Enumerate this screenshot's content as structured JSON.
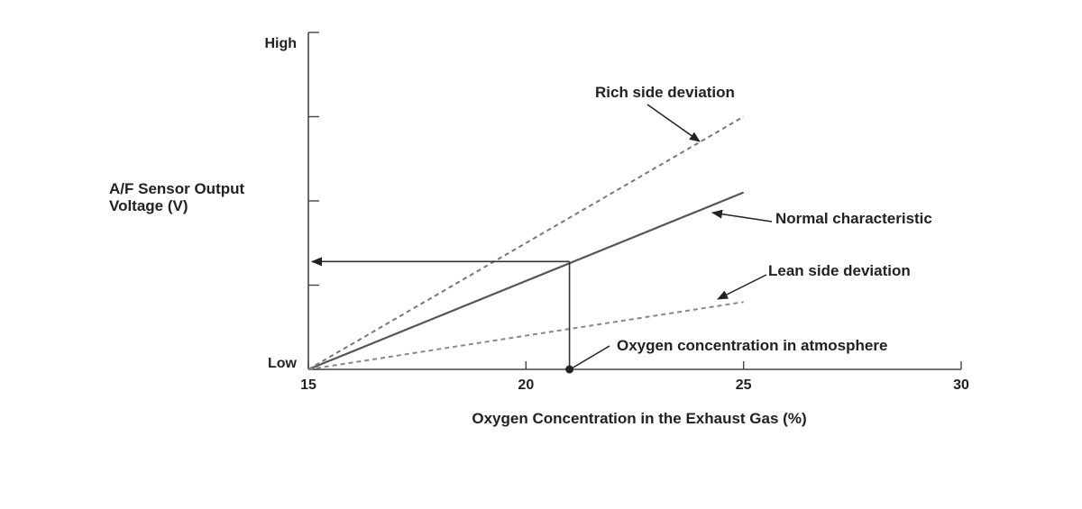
{
  "chart_data": {
    "type": "line",
    "xlabel": "Oxygen Concentration in the Exhaust Gas (%)",
    "ylabel_lines": [
      "A/F Sensor Output",
      "Voltage (V)"
    ],
    "y_tick_labels": {
      "high": "High",
      "low": "Low"
    },
    "xlim": [
      15,
      30
    ],
    "ylim": [
      0,
      4
    ],
    "x_ticks": [
      15,
      20,
      25,
      30
    ],
    "x_tick_labels": [
      "15",
      "20",
      "25",
      "30"
    ],
    "y_ticks": [
      0,
      1,
      2,
      3,
      4
    ],
    "grid": false,
    "series": [
      {
        "name": "Normal characteristic",
        "style": "solid",
        "color": "#555555",
        "x": [
          15,
          25
        ],
        "y": [
          0,
          2.1
        ]
      },
      {
        "name": "Rich side deviation",
        "style": "dashed",
        "color": "#777777",
        "x": [
          15,
          25
        ],
        "y": [
          0,
          3.0
        ]
      },
      {
        "name": "Lean side deviation",
        "style": "dashed",
        "color": "#888888",
        "x": [
          15,
          25
        ],
        "y": [
          0,
          0.8
        ]
      }
    ],
    "reference": {
      "label": "Oxygen concentration in atmosphere",
      "x": 21,
      "y": 1.28,
      "arrow_to_axis": true
    }
  }
}
